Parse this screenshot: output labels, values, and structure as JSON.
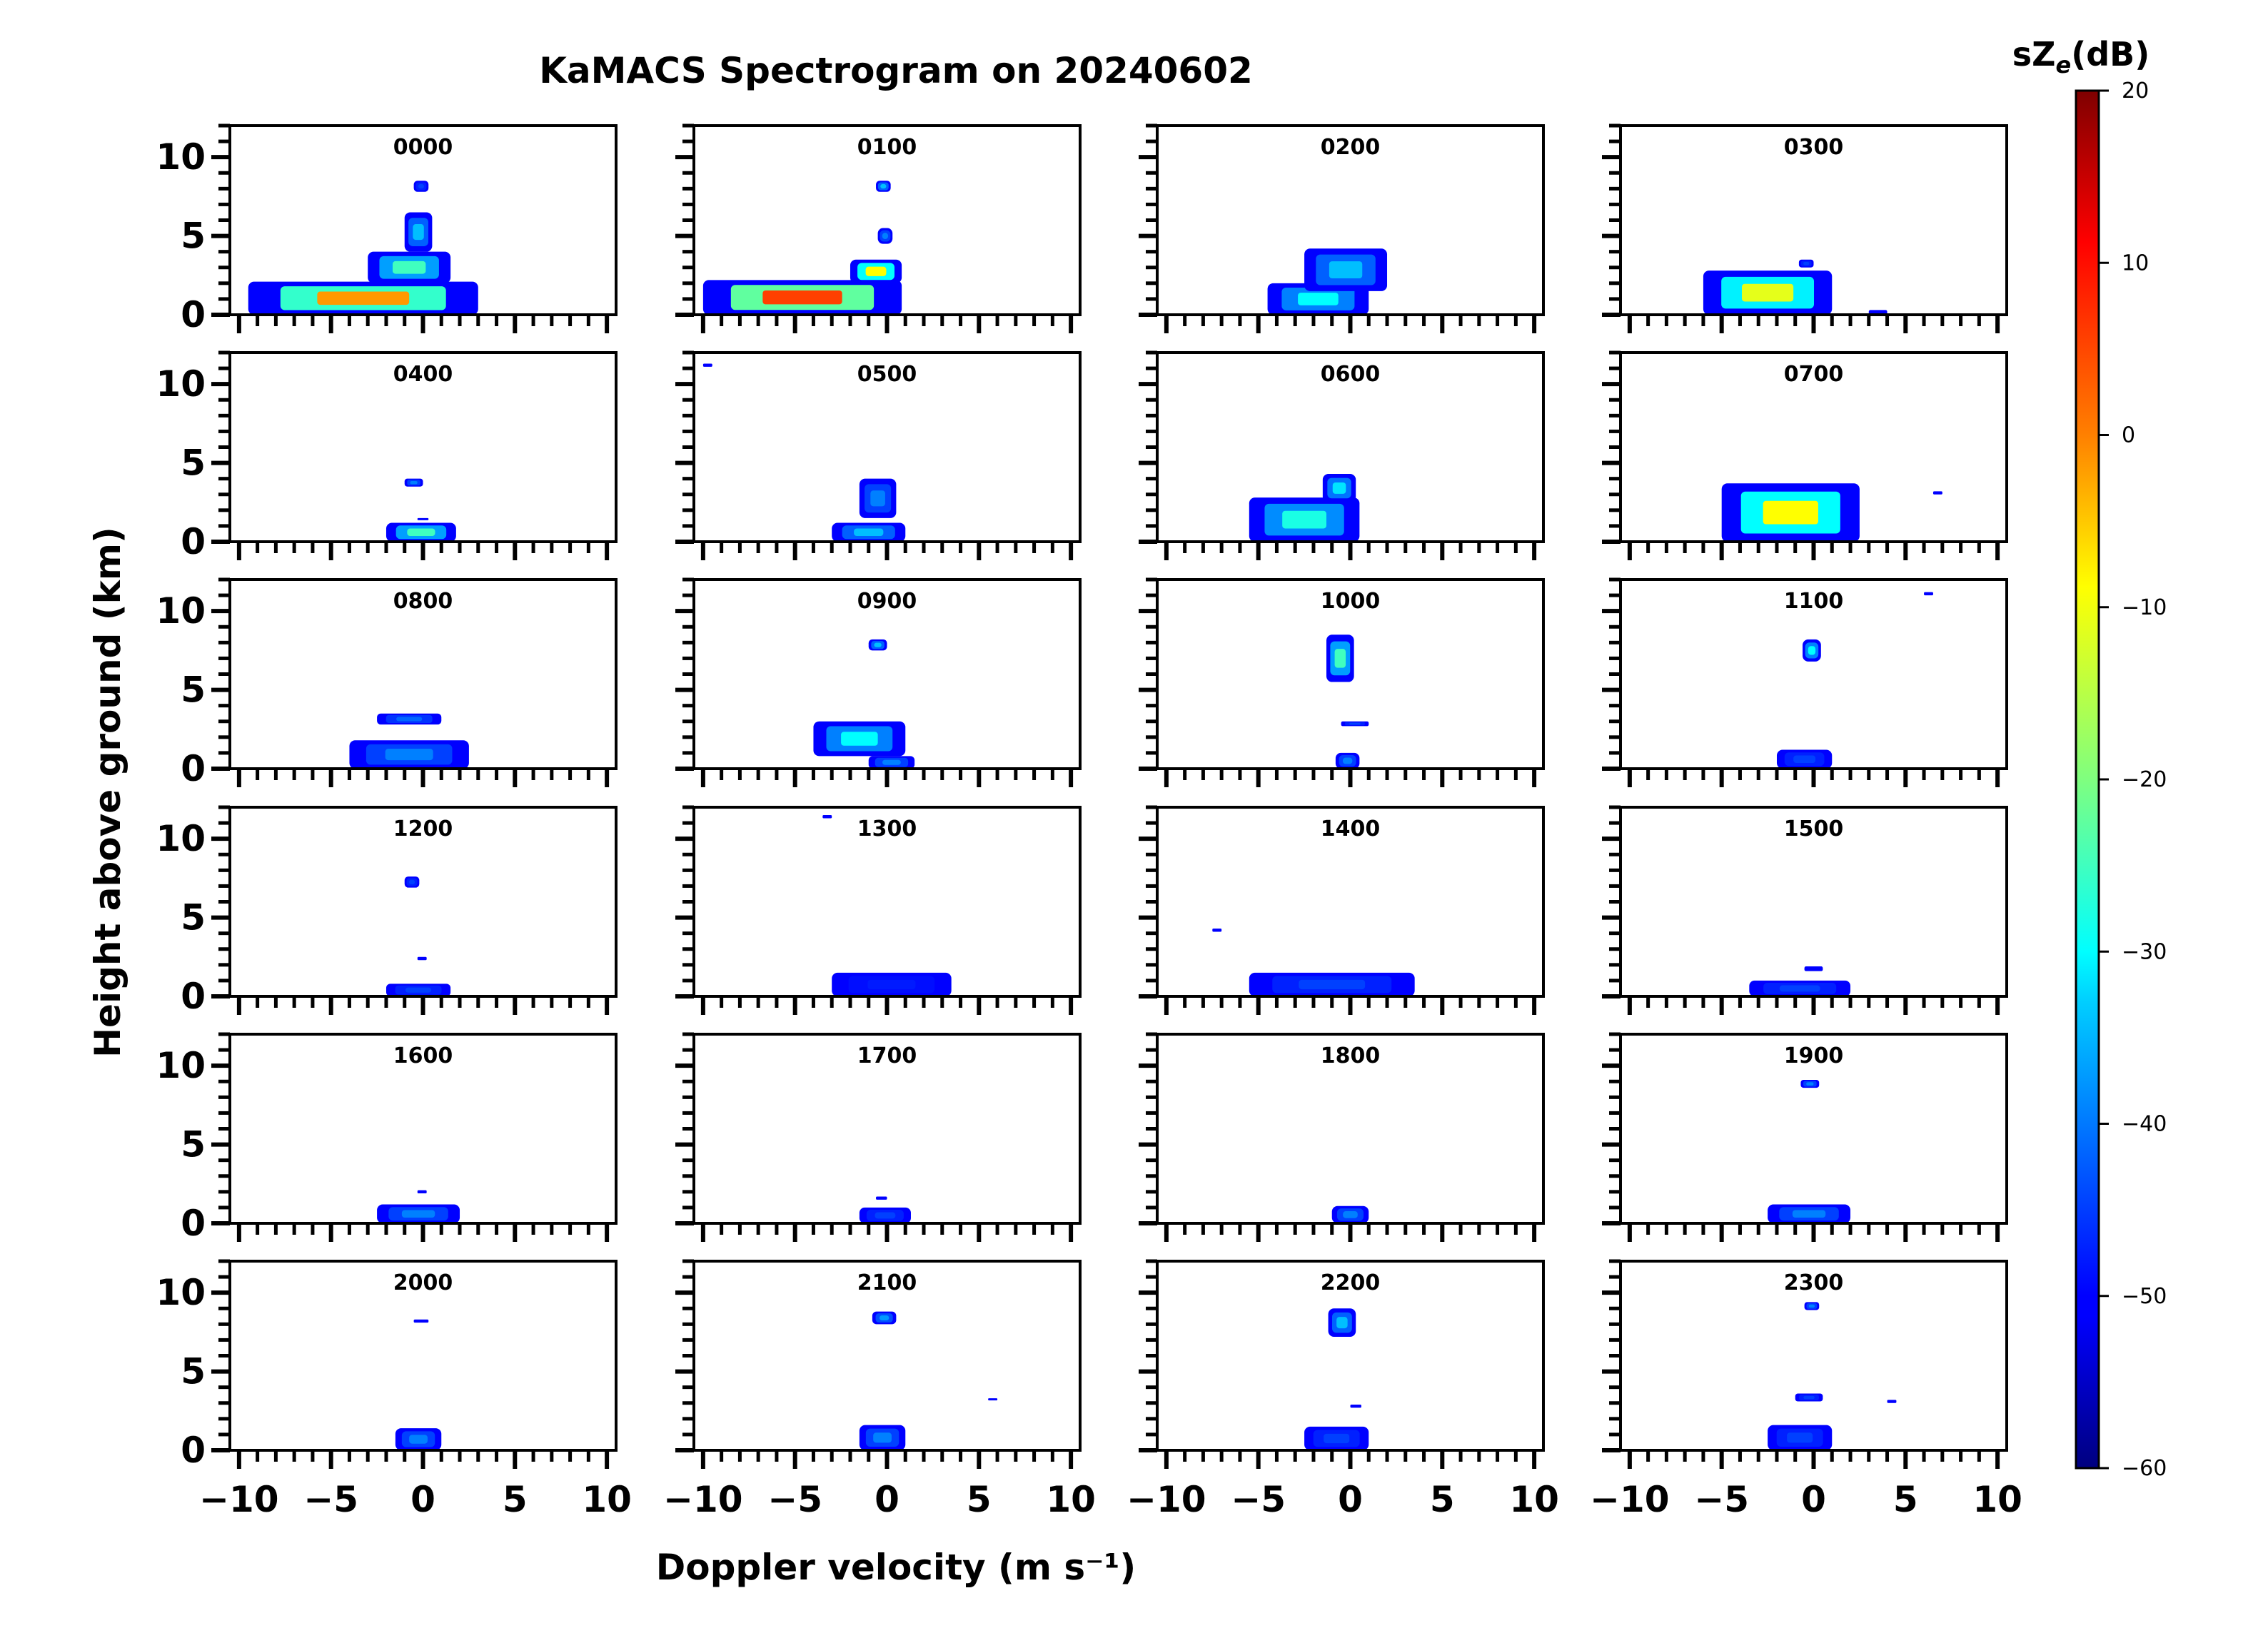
{
  "chart_data": {
    "type": "heatmap",
    "title": "KaMACS Spectrogram on 20240602",
    "xlabel": "Doppler velocity (m s⁻¹)",
    "ylabel": "Height above ground (km)",
    "xlim": [
      -10.5,
      10.5
    ],
    "ylim": [
      0,
      12
    ],
    "x_ticks": [
      -10,
      -5,
      0,
      5,
      10
    ],
    "y_ticks": [
      0,
      5,
      10
    ],
    "colorbar": {
      "label": "sZe(dB)",
      "label_main": "sZ",
      "label_sub": "e",
      "label_unit": "(dB)",
      "range": [
        -60,
        20
      ],
      "ticks": [
        20,
        10,
        0,
        -10,
        -20,
        -30,
        -40,
        -50,
        -60
      ],
      "tick_labels": [
        "20",
        "10",
        "0",
        "−10",
        "−20",
        "−30",
        "−40",
        "−50",
        "−60"
      ],
      "colormap": "jet"
    },
    "panels": [
      {
        "label": "0000",
        "echoes": [
          {
            "v": [
              -9.5,
              3.0
            ],
            "h": [
              0.0,
              2.1
            ],
            "core": -2
          },
          {
            "v": [
              -3.0,
              1.5
            ],
            "h": [
              2.0,
              4.0
            ],
            "core": -25
          },
          {
            "v": [
              -1.0,
              0.5
            ],
            "h": [
              4.0,
              6.5
            ],
            "core": -35
          },
          {
            "v": [
              -0.5,
              0.3
            ],
            "h": [
              7.8,
              8.5
            ],
            "core": -45
          }
        ]
      },
      {
        "label": "0100",
        "echoes": [
          {
            "v": [
              -10.0,
              0.8
            ],
            "h": [
              0.0,
              2.2
            ],
            "core": 5
          },
          {
            "v": [
              -2.0,
              0.8
            ],
            "h": [
              2.0,
              3.5
            ],
            "core": -10
          },
          {
            "v": [
              -0.5,
              0.3
            ],
            "h": [
              4.5,
              5.5
            ],
            "core": -40
          },
          {
            "v": [
              -0.6,
              0.2
            ],
            "h": [
              7.8,
              8.5
            ],
            "core": -35
          }
        ]
      },
      {
        "label": "0200",
        "echoes": [
          {
            "v": [
              -4.5,
              1.0
            ],
            "h": [
              0.0,
              2.0
            ],
            "core": -30
          },
          {
            "v": [
              -2.5,
              2.0
            ],
            "h": [
              1.5,
              4.2
            ],
            "core": -35
          }
        ]
      },
      {
        "label": "0300",
        "echoes": [
          {
            "v": [
              -6.0,
              1.0
            ],
            "h": [
              0.0,
              2.8
            ],
            "core": -12
          },
          {
            "v": [
              -0.8,
              0.0
            ],
            "h": [
              3.0,
              3.5
            ],
            "core": -45
          },
          {
            "v": [
              3.0,
              4.0
            ],
            "h": [
              0.0,
              0.3
            ],
            "core": -50
          }
        ]
      },
      {
        "label": "0400",
        "echoes": [
          {
            "v": [
              -2.0,
              1.8
            ],
            "h": [
              0.0,
              1.2
            ],
            "core": -25
          },
          {
            "v": [
              -1.0,
              0.0
            ],
            "h": [
              3.5,
              4.0
            ],
            "core": -40
          },
          {
            "v": [
              -0.3,
              0.3
            ],
            "h": [
              1.4,
              1.5
            ],
            "core": -45
          }
        ]
      },
      {
        "label": "0500",
        "echoes": [
          {
            "v": [
              -3.0,
              1.0
            ],
            "h": [
              0.0,
              1.2
            ],
            "core": -35
          },
          {
            "v": [
              -1.5,
              0.5
            ],
            "h": [
              1.5,
              4.0
            ],
            "core": -40
          },
          {
            "v": [
              -10.0,
              -9.5
            ],
            "h": [
              11.1,
              11.3
            ],
            "core": -50
          }
        ]
      },
      {
        "label": "0600",
        "echoes": [
          {
            "v": [
              -5.5,
              0.5
            ],
            "h": [
              0.0,
              2.8
            ],
            "core": -28
          },
          {
            "v": [
              -1.5,
              0.3
            ],
            "h": [
              2.5,
              4.3
            ],
            "core": -32
          }
        ]
      },
      {
        "label": "0700",
        "echoes": [
          {
            "v": [
              -5.0,
              2.5
            ],
            "h": [
              0.0,
              3.7
            ],
            "core": -10
          },
          {
            "v": [
              6.5,
              7.0
            ],
            "h": [
              3.0,
              3.2
            ],
            "core": -50
          }
        ]
      },
      {
        "label": "0800",
        "echoes": [
          {
            "v": [
              -4.0,
              2.5
            ],
            "h": [
              0.0,
              1.8
            ],
            "core": -40
          },
          {
            "v": [
              -2.5,
              1.0
            ],
            "h": [
              2.8,
              3.5
            ],
            "core": -42
          }
        ]
      },
      {
        "label": "0900",
        "echoes": [
          {
            "v": [
              -4.0,
              1.0
            ],
            "h": [
              0.8,
              3.0
            ],
            "core": -30
          },
          {
            "v": [
              -1.0,
              1.5
            ],
            "h": [
              0.0,
              0.8
            ],
            "core": -40
          },
          {
            "v": [
              -1.0,
              0.0
            ],
            "h": [
              7.5,
              8.2
            ],
            "core": -35
          }
        ]
      },
      {
        "label": "1000",
        "echoes": [
          {
            "v": [
              -1.3,
              0.2
            ],
            "h": [
              5.5,
              8.5
            ],
            "core": -25
          },
          {
            "v": [
              -0.5,
              1.0
            ],
            "h": [
              2.7,
              3.0
            ],
            "core": -45
          },
          {
            "v": [
              -0.8,
              0.5
            ],
            "h": [
              0.0,
              1.0
            ],
            "core": -40
          }
        ]
      },
      {
        "label": "1100",
        "echoes": [
          {
            "v": [
              -0.6,
              0.4
            ],
            "h": [
              6.8,
              8.2
            ],
            "core": -30
          },
          {
            "v": [
              -2.0,
              1.0
            ],
            "h": [
              0.0,
              1.2
            ],
            "core": -45
          },
          {
            "v": [
              6.0,
              6.5
            ],
            "h": [
              11.0,
              11.2
            ],
            "core": -50
          }
        ]
      },
      {
        "label": "1200",
        "echoes": [
          {
            "v": [
              -1.0,
              -0.2
            ],
            "h": [
              6.9,
              7.6
            ],
            "core": -45
          },
          {
            "v": [
              -2.0,
              1.5
            ],
            "h": [
              0.0,
              0.8
            ],
            "core": -45
          },
          {
            "v": [
              -0.3,
              0.2
            ],
            "h": [
              2.3,
              2.5
            ],
            "core": -50
          }
        ]
      },
      {
        "label": "1300",
        "echoes": [
          {
            "v": [
              -3.0,
              3.5
            ],
            "h": [
              0.0,
              1.5
            ],
            "core": -48
          },
          {
            "v": [
              -3.5,
              -3.0
            ],
            "h": [
              11.3,
              11.5
            ],
            "core": -50
          }
        ]
      },
      {
        "label": "1400",
        "echoes": [
          {
            "v": [
              -5.5,
              3.5
            ],
            "h": [
              0.0,
              1.5
            ],
            "core": -45
          },
          {
            "v": [
              -7.5,
              -7.0
            ],
            "h": [
              4.1,
              4.3
            ],
            "core": -50
          }
        ]
      },
      {
        "label": "1500",
        "echoes": [
          {
            "v": [
              -3.5,
              2.0
            ],
            "h": [
              0.0,
              1.0
            ],
            "core": -45
          },
          {
            "v": [
              -0.5,
              0.5
            ],
            "h": [
              1.6,
              1.9
            ],
            "core": -50
          }
        ]
      },
      {
        "label": "1600",
        "echoes": [
          {
            "v": [
              -2.5,
              2.0
            ],
            "h": [
              0.0,
              1.2
            ],
            "core": -40
          },
          {
            "v": [
              -0.3,
              0.2
            ],
            "h": [
              1.9,
              2.1
            ],
            "core": -50
          }
        ]
      },
      {
        "label": "1700",
        "echoes": [
          {
            "v": [
              -1.5,
              1.3
            ],
            "h": [
              0.0,
              1.0
            ],
            "core": -45
          },
          {
            "v": [
              -0.6,
              0.0
            ],
            "h": [
              1.5,
              1.7
            ],
            "core": -50
          }
        ]
      },
      {
        "label": "1800",
        "echoes": [
          {
            "v": [
              -1.0,
              1.0
            ],
            "h": [
              0.0,
              1.1
            ],
            "core": -40
          }
        ]
      },
      {
        "label": "1900",
        "echoes": [
          {
            "v": [
              -2.5,
              2.0
            ],
            "h": [
              0.0,
              1.2
            ],
            "core": -40
          },
          {
            "v": [
              -0.7,
              0.3
            ],
            "h": [
              8.6,
              9.1
            ],
            "core": -40
          }
        ]
      },
      {
        "label": "2000",
        "echoes": [
          {
            "v": [
              -1.5,
              1.0
            ],
            "h": [
              0.0,
              1.4
            ],
            "core": -40
          },
          {
            "v": [
              -0.5,
              0.3
            ],
            "h": [
              8.1,
              8.3
            ],
            "core": -50
          }
        ]
      },
      {
        "label": "2100",
        "echoes": [
          {
            "v": [
              -1.5,
              1.0
            ],
            "h": [
              0.0,
              1.6
            ],
            "core": -40
          },
          {
            "v": [
              -0.8,
              0.5
            ],
            "h": [
              8.0,
              8.8
            ],
            "core": -38
          },
          {
            "v": [
              5.5,
              6.0
            ],
            "h": [
              3.2,
              3.3
            ],
            "core": -50
          }
        ]
      },
      {
        "label": "2200",
        "echoes": [
          {
            "v": [
              -1.2,
              0.3
            ],
            "h": [
              7.2,
              9.0
            ],
            "core": -35
          },
          {
            "v": [
              -2.5,
              1.0
            ],
            "h": [
              0.0,
              1.5
            ],
            "core": -45
          },
          {
            "v": [
              0.0,
              0.6
            ],
            "h": [
              2.7,
              2.9
            ],
            "core": -50
          }
        ]
      },
      {
        "label": "2300",
        "echoes": [
          {
            "v": [
              -2.5,
              1.0
            ],
            "h": [
              0.0,
              1.6
            ],
            "core": -45
          },
          {
            "v": [
              -1.0,
              0.5
            ],
            "h": [
              3.1,
              3.6
            ],
            "core": -45
          },
          {
            "v": [
              -0.5,
              0.3
            ],
            "h": [
              8.9,
              9.4
            ],
            "core": -40
          },
          {
            "v": [
              4.0,
              4.5
            ],
            "h": [
              3.0,
              3.2
            ],
            "core": -50
          }
        ]
      }
    ]
  }
}
